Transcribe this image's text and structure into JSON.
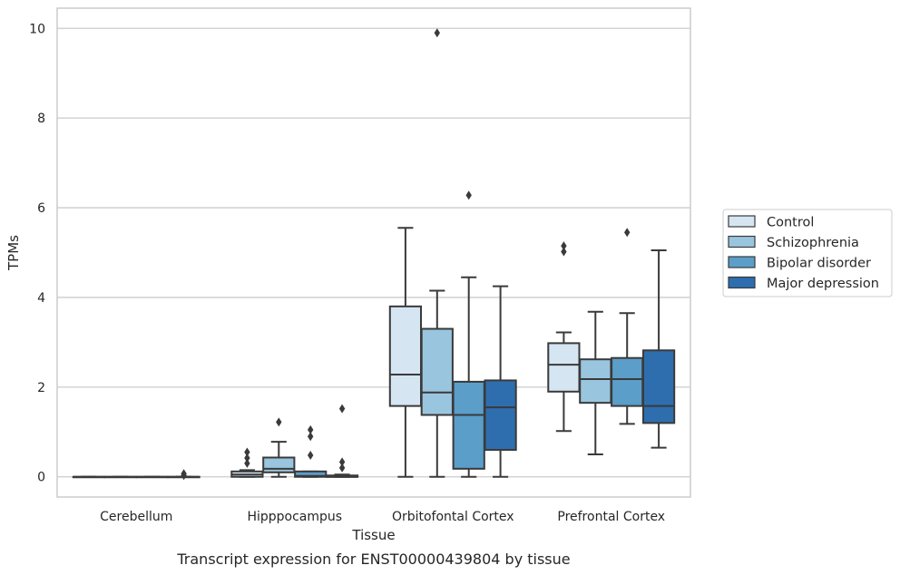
{
  "chart_data": {
    "type": "box",
    "caption": "Transcript expression for ENST00000439804 by tissue",
    "xlabel": "Tissue",
    "ylabel": "TPMs",
    "ylim": [
      -0.45,
      10.45
    ],
    "yticks": [
      "0",
      "2",
      "4",
      "6",
      "8",
      "10"
    ],
    "grid": true,
    "legend_position": "right",
    "categories": [
      "Cerebellum",
      "Hipppocampus",
      "Orbitofontal Cortex",
      "Prefrontal Cortex"
    ],
    "series": [
      {
        "name": "Control",
        "color": "#d6e5f2",
        "boxes": [
          {
            "whislo": 0.0,
            "q1": 0.0,
            "med": 0.0,
            "q3": 0.0,
            "whishi": 0.0,
            "fliers": []
          },
          {
            "whislo": 0.0,
            "q1": 0.0,
            "med": 0.05,
            "q3": 0.12,
            "whishi": 0.15,
            "fliers": [
              0.3,
              0.42,
              0.55
            ]
          },
          {
            "whislo": 0.0,
            "q1": 1.58,
            "med": 2.28,
            "q3": 3.8,
            "whishi": 5.55,
            "fliers": []
          },
          {
            "whislo": 1.02,
            "q1": 1.9,
            "med": 2.5,
            "q3": 2.98,
            "whishi": 3.22,
            "fliers": [
              5.02,
              5.15
            ]
          }
        ]
      },
      {
        "name": "Schizophrenia",
        "color": "#9ac5df",
        "boxes": [
          {
            "whislo": 0.0,
            "q1": 0.0,
            "med": 0.0,
            "q3": 0.0,
            "whishi": 0.0,
            "fliers": []
          },
          {
            "whislo": 0.0,
            "q1": 0.1,
            "med": 0.18,
            "q3": 0.43,
            "whishi": 0.78,
            "fliers": [
              1.22
            ]
          },
          {
            "whislo": 0.0,
            "q1": 1.38,
            "med": 1.88,
            "q3": 3.3,
            "whishi": 4.15,
            "fliers": [
              9.9
            ]
          },
          {
            "whislo": 0.5,
            "q1": 1.65,
            "med": 2.18,
            "q3": 2.62,
            "whishi": 3.68,
            "fliers": []
          }
        ]
      },
      {
        "name": "Bipolar disorder",
        "color": "#5a9ec9",
        "boxes": [
          {
            "whislo": 0.0,
            "q1": 0.0,
            "med": 0.0,
            "q3": 0.0,
            "whishi": 0.0,
            "fliers": []
          },
          {
            "whislo": 0.0,
            "q1": 0.0,
            "med": 0.02,
            "q3": 0.12,
            "whishi": 0.12,
            "fliers": [
              0.48,
              0.9,
              1.05
            ]
          },
          {
            "whislo": 0.0,
            "q1": 0.18,
            "med": 1.38,
            "q3": 2.12,
            "whishi": 4.45,
            "fliers": [
              6.28
            ]
          },
          {
            "whislo": 1.18,
            "q1": 1.58,
            "med": 2.18,
            "q3": 2.65,
            "whishi": 3.65,
            "fliers": [
              5.45
            ]
          }
        ]
      },
      {
        "name": "Major depression",
        "color": "#2e6eaf",
        "boxes": [
          {
            "whislo": 0.0,
            "q1": 0.0,
            "med": 0.0,
            "q3": 0.0,
            "whishi": 0.0,
            "fliers": [
              0.03,
              0.07
            ]
          },
          {
            "whislo": 0.0,
            "q1": 0.0,
            "med": 0.0,
            "q3": 0.03,
            "whishi": 0.05,
            "fliers": [
              0.2,
              0.33,
              1.52
            ]
          },
          {
            "whislo": 0.0,
            "q1": 0.6,
            "med": 1.55,
            "q3": 2.15,
            "whishi": 4.25,
            "fliers": []
          },
          {
            "whislo": 0.65,
            "q1": 1.2,
            "med": 1.58,
            "q3": 2.82,
            "whishi": 5.05,
            "fliers": []
          }
        ]
      }
    ]
  }
}
